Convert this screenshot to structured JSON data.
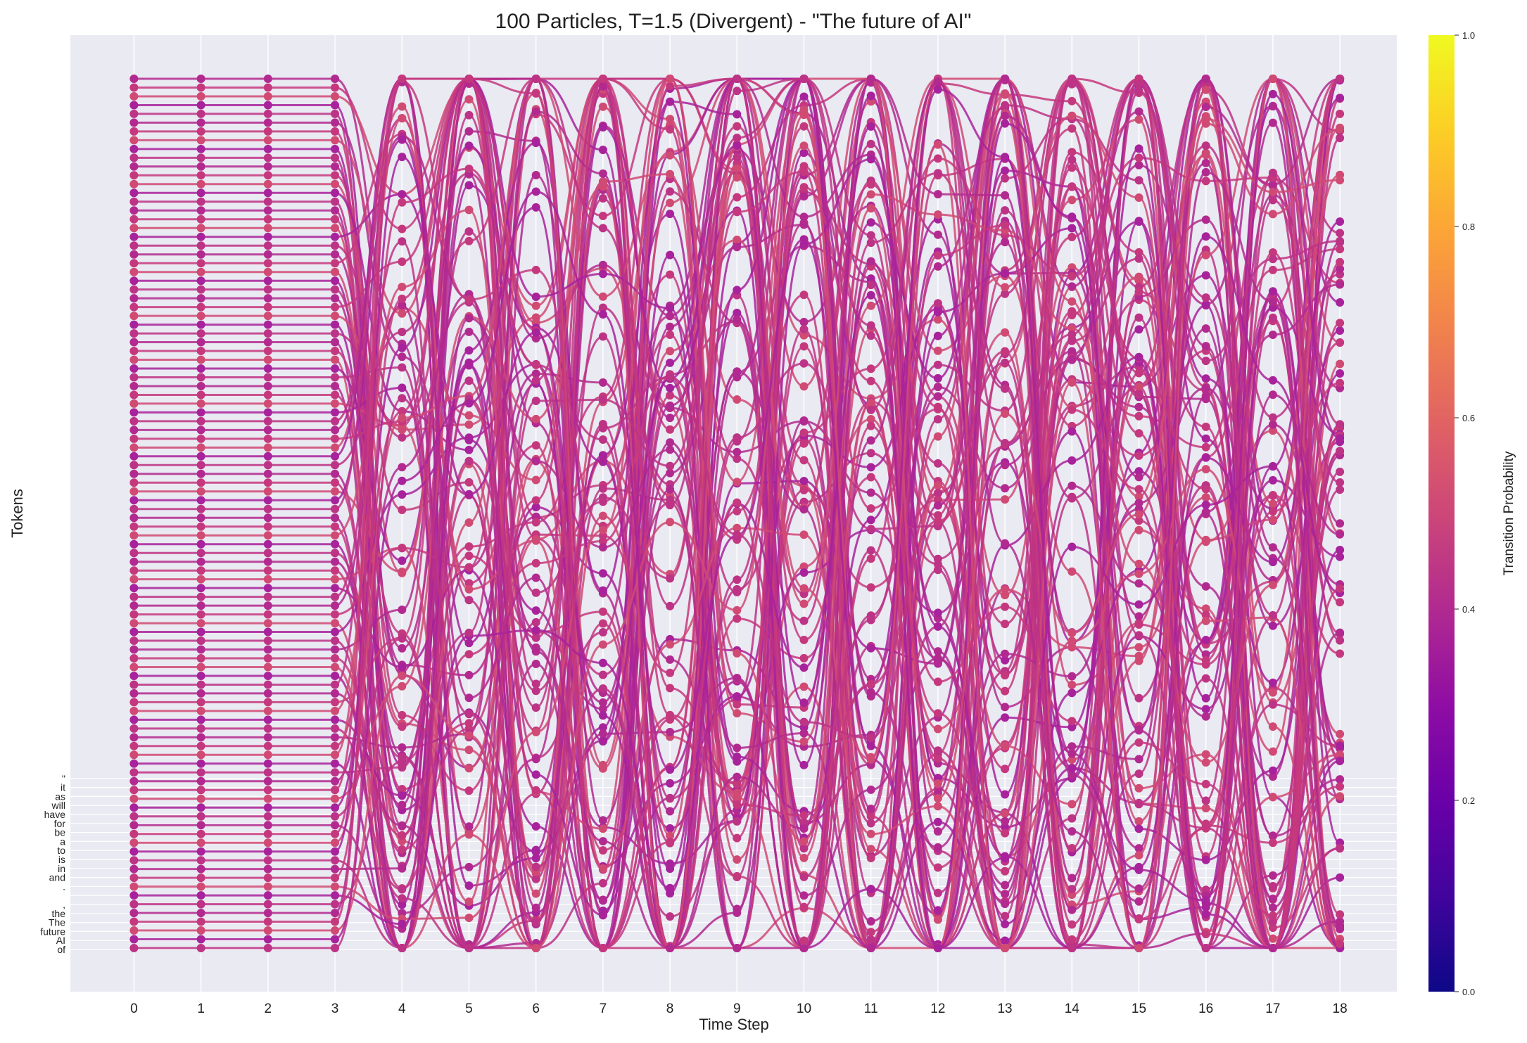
{
  "chart_data": {
    "type": "line",
    "title": "100 Particles, T=1.5 (Divergent) - \"The future of AI\"",
    "xlabel": "Time Step",
    "ylabel": "Tokens",
    "x": [
      0,
      1,
      2,
      3,
      4,
      5,
      6,
      7,
      8,
      9,
      10,
      11,
      12,
      13,
      14,
      15,
      16,
      17,
      18
    ],
    "xlim": [
      -0.95,
      18.85
    ],
    "num_particles": 100,
    "prefix_steps": 4,
    "y_tick_labels": [
      "of",
      "AI",
      "future",
      "The",
      "the",
      ",",
      "",
      ".",
      "and",
      "in",
      "is",
      "to",
      "a",
      "be",
      "for",
      "have",
      "will",
      "as",
      "it",
      "\""
    ],
    "grid": true,
    "colorbar": {
      "label": "Transition Probability",
      "colormap": "plasma",
      "ticks": [
        "0.0",
        "0.2",
        "0.4",
        "0.6",
        "0.8",
        "1.0"
      ],
      "range": [
        0.0,
        1.0
      ]
    },
    "colors": {
      "axes_background": "#eaeaf2",
      "grid": "#ffffff",
      "line_colors": [
        "#b22a8f",
        "#c5387e",
        "#d04a74",
        "#a8229b",
        "#bd3385"
      ]
    }
  }
}
